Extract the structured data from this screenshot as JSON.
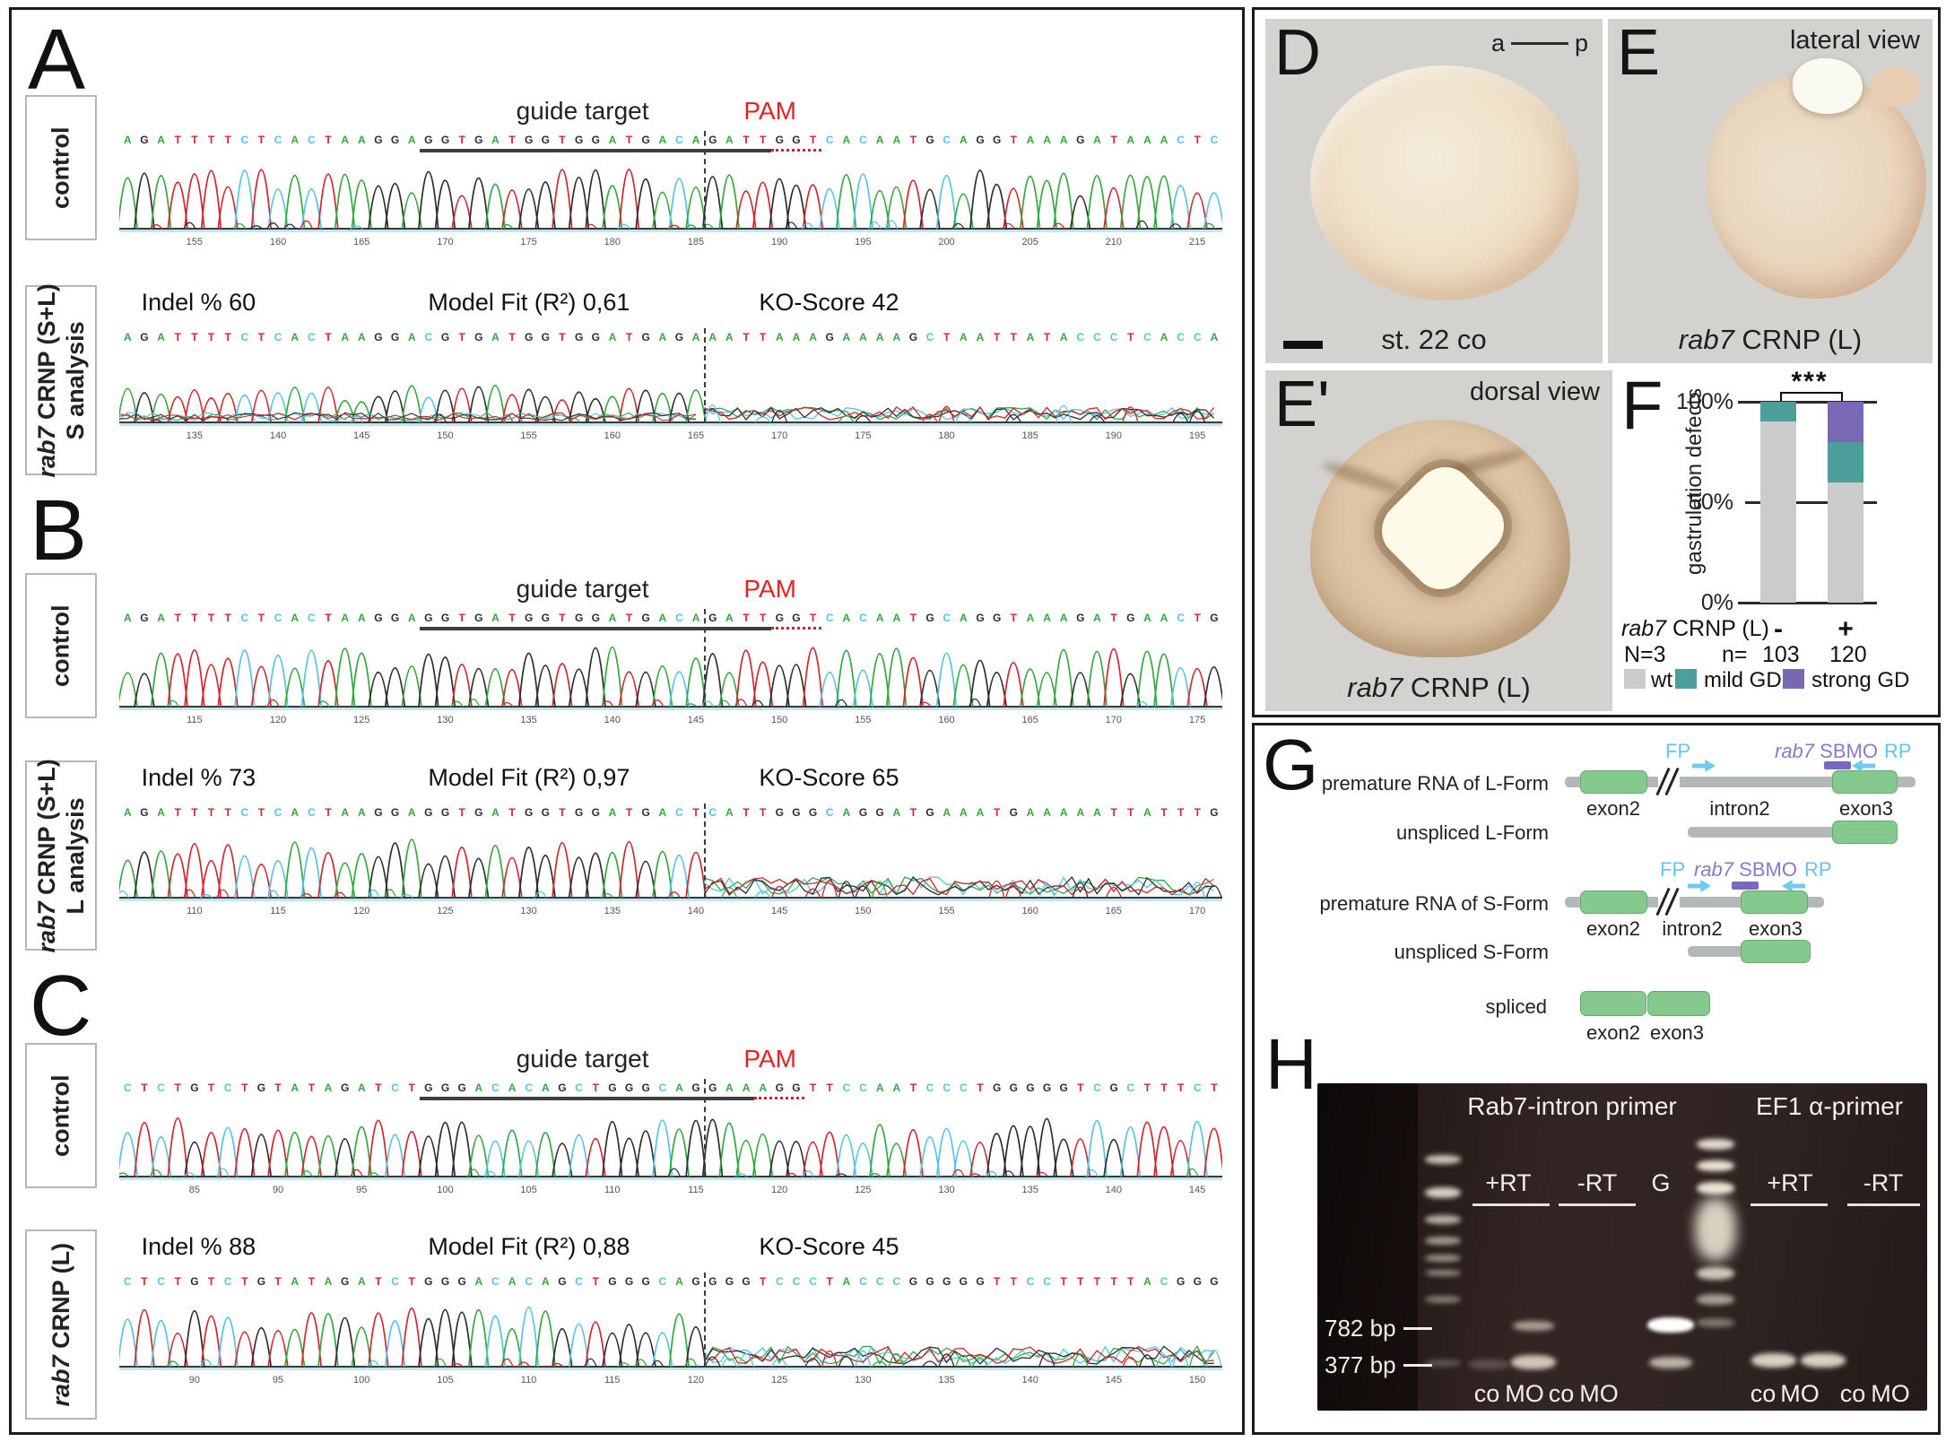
{
  "base_colors": {
    "A": "#33a83d",
    "C": "#54c3e4",
    "G": "#2d2d2d",
    "T": "#d0262c"
  },
  "panels_seq": [
    {
      "letter": "A",
      "control": {
        "side_label": "control",
        "guide_label": "guide target",
        "pam_label": "PAM",
        "sequence": "AGATTTTCTCACTAAGGAGGTGATGGTGGATGACAGATTGGTCACAATGCAGGTAAAGATAAACTC",
        "ticks": [
          155,
          160,
          165,
          170,
          175,
          180,
          185,
          190,
          195,
          200,
          205,
          210,
          215
        ],
        "cut_index": 35,
        "guide_underline": [
          18,
          38
        ],
        "pam_underline": [
          39,
          41
        ]
      },
      "edited": {
        "side_label_gene": "rab7",
        "side_label_rest": " CRNP (S+L)",
        "side_label_line2": "S analysis",
        "stats": [
          "Indel % 60",
          "Model Fit (R²) 0,61",
          "KO-Score 42"
        ],
        "sequence": "AGATTTTCTCACTAAGGACGTGATGGTGGATGAGAAATTAAAGAAAAGCTAATTATACCCTCACCA",
        "ticks": [
          135,
          140,
          145,
          150,
          155,
          160,
          165,
          170,
          175,
          180,
          185,
          190,
          195
        ],
        "cut_index": 35,
        "messy": "all"
      }
    },
    {
      "letter": "B",
      "control": {
        "side_label": "control",
        "guide_label": "guide target",
        "pam_label": "PAM",
        "sequence": "AGATTTTCTCACTAAGGAGGTGATGGTGGATGACAGATTGGTCACAATGCAGGTAAAGATGAACTG",
        "ticks": [
          115,
          120,
          125,
          130,
          135,
          140,
          145,
          150,
          155,
          160,
          165,
          170,
          175
        ],
        "cut_index": 35,
        "guide_underline": [
          18,
          38
        ],
        "pam_underline": [
          39,
          41
        ]
      },
      "edited": {
        "side_label_gene": "rab7",
        "side_label_rest": " CRNP (S+L)",
        "side_label_line2": "L analysis",
        "stats": [
          "Indel % 73",
          "Model Fit (R²) 0,97",
          "KO-Score 65"
        ],
        "sequence": "AGATTTTCTCACTAAGGAGGTGATGGTGGATGACTCATTGGGCAGGATGAAATGAAAAATTATTTG",
        "ticks": [
          110,
          115,
          120,
          125,
          130,
          135,
          140,
          145,
          150,
          155,
          160,
          165,
          170
        ],
        "cut_index": 35,
        "messy": "after"
      }
    },
    {
      "letter": "C",
      "control": {
        "side_label": "control",
        "guide_label": "guide target",
        "pam_label": "PAM",
        "sequence": "CTCTGTCTGTATAGATCTGGGACACAGCTGGGCAGGAAAGGTTCCAATCCCTGGGGGTCGCTTTCT",
        "ticks": [
          85,
          90,
          95,
          100,
          105,
          110,
          115,
          120,
          125,
          130,
          135,
          140,
          145
        ],
        "cut_index": 35,
        "guide_underline": [
          18,
          37
        ],
        "pam_underline": [
          38,
          40
        ]
      },
      "edited": {
        "side_label_gene": "rab7",
        "side_label_rest": " CRNP (L)",
        "side_label_line2": null,
        "stats": [
          "Indel % 88",
          "Model Fit (R²) 0,88",
          "KO-Score 45"
        ],
        "sequence": "CTCTGTCTGTATAGATCTGGGACACAGCTGGGCAGGGGTCCCTACCCGGGGGTTCCTTTTTACGGG",
        "ticks": [
          90,
          95,
          100,
          105,
          110,
          115,
          120,
          125,
          130,
          135,
          140,
          145,
          150
        ],
        "cut_index": 35,
        "messy": "after"
      }
    }
  ],
  "panelD": {
    "letter": "D",
    "axis_a": "a",
    "axis_p": "p",
    "caption": "st. 22 co"
  },
  "panelE": {
    "letter": "E",
    "view": "lateral view",
    "caption_gene": "rab7",
    "caption_rest": " CRNP (L)"
  },
  "panelE2": {
    "letter": "E'",
    "view": "dorsal view",
    "caption_gene": "rab7",
    "caption_rest": " CRNP (L)"
  },
  "panelF": {
    "letter": "F",
    "chart_data": {
      "type": "stacked_bar",
      "categories": [
        "-",
        "+"
      ],
      "series": [
        {
          "name": "wt",
          "color": "#cbcbcb",
          "values": [
            90,
            60
          ]
        },
        {
          "name": "mild GD",
          "color": "#4d9e9b",
          "values": [
            10,
            20
          ]
        },
        {
          "name": "strong GD",
          "color": "#7a68b5",
          "values": [
            0,
            20
          ]
        }
      ],
      "ylabel": "gastrulation defects",
      "yticks": [
        "0%",
        "50%",
        "100%"
      ],
      "ylim": [
        0,
        100
      ],
      "significance": "***",
      "row1_label_gene": "rab7",
      "row1_label_rest": " CRNP (L)",
      "row2_left": "N=3",
      "row2_mid": "n=",
      "counts": [
        "103",
        "120"
      ],
      "legend": [
        "wt",
        "mild GD",
        "strong GD"
      ]
    }
  },
  "panelG": {
    "letter": "G",
    "primer_fp": "FP",
    "primer_rp": "RP",
    "sbmo_gene": "rab7",
    "sbmo_rest": " SBMO",
    "rows": [
      {
        "label": "premature RNA of L-Form"
      },
      {
        "label": "unspliced L-Form"
      },
      {
        "label": "premature RNA of S-Form"
      },
      {
        "label": "unspliced S-Form"
      },
      {
        "label": "spliced"
      }
    ],
    "exon2": "exon2",
    "intron2": "intron2",
    "exon3": "exon3"
  },
  "panelH": {
    "letter": "H",
    "title_left": "Rab7-intron primer",
    "title_right": "EF1 α-primer",
    "groups": [
      "+RT",
      "-RT",
      "G",
      "+RT",
      "-RT"
    ],
    "marker_782": "782 bp",
    "marker_377": "377 bp",
    "lane_labels": [
      "co",
      "MO",
      "co",
      "MO",
      "co",
      "MO",
      "co",
      "MO"
    ]
  }
}
